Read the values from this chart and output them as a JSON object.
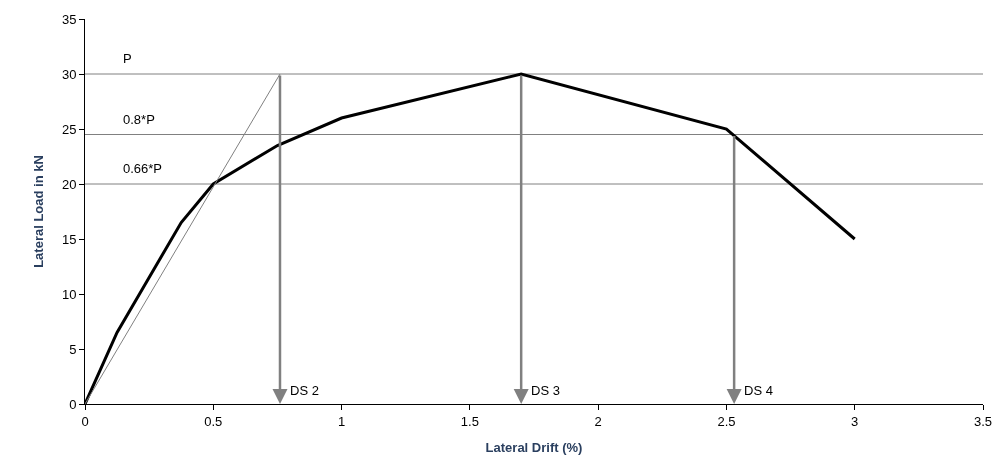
{
  "chart_data": {
    "type": "line",
    "xlabel": "Lateral Drift (%)",
    "ylabel": "Lateral Load in kN",
    "xlim": [
      0,
      3.5
    ],
    "xticks": [
      0,
      0.5,
      1,
      1.5,
      2,
      2.5,
      3,
      3.5
    ],
    "ylim": [
      0,
      35
    ],
    "yticks": [
      0,
      5,
      10,
      15,
      20,
      25,
      30,
      35
    ],
    "grid": false,
    "series": [
      {
        "color": "#000000",
        "x": [
          0,
          0.125,
          0.375,
          0.5,
          0.75,
          1,
          1.7,
          2.5,
          3
        ],
        "values": [
          0,
          6.5,
          16.5,
          20,
          23.5,
          26,
          30,
          25,
          15
        ]
      },
      {
        "color": "#808080",
        "x": [
          0,
          0.76
        ],
        "values": [
          0,
          30
        ]
      }
    ],
    "ref_lines": [
      {
        "axis": "y",
        "value": 30,
        "label": "P",
        "color": "#808080"
      },
      {
        "axis": "y",
        "value": 24.5,
        "label": "0.8*P",
        "color": "#808080"
      },
      {
        "axis": "y",
        "value": 20,
        "label": "0.66*P",
        "color": "#808080"
      }
    ],
    "annotations": [
      {
        "text": "DS 2",
        "x": 0.76,
        "y": 30
      },
      {
        "text": "DS 3",
        "x": 1.7,
        "y": 30
      },
      {
        "text": "DS 4",
        "x": 2.53,
        "y": 24.5
      }
    ]
  }
}
